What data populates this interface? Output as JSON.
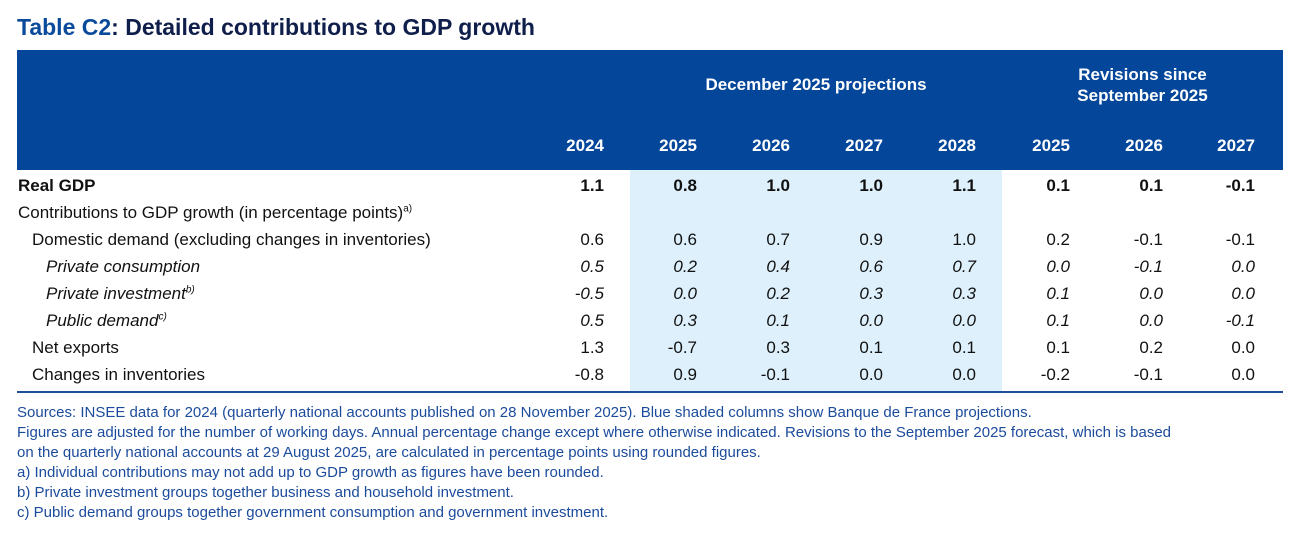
{
  "title": {
    "prefix": "Table C2",
    "rest": ": Detailed contributions to GDP growth"
  },
  "header": {
    "group1": "December 2025 projections",
    "group2_line1": "Revisions since",
    "group2_line2": "September 2025",
    "years": [
      "2024",
      "2025",
      "2026",
      "2027",
      "2028",
      "2025",
      "2026",
      "2027"
    ]
  },
  "colors": {
    "header": "#03469a",
    "shade": "#ddf0fb",
    "notes": "#1b4b9c"
  },
  "rows": [
    {
      "label": "Real GDP",
      "sup": "",
      "style": "b",
      "indent": 0,
      "values": [
        "1.1",
        "0.8",
        "1.0",
        "1.0",
        "1.1",
        "0.1",
        "0.1",
        "-0.1"
      ]
    },
    {
      "label": "Contributions to GDP growth (in percentage points)",
      "sup": "a)",
      "style": "",
      "indent": 0,
      "values": []
    },
    {
      "label": "Domestic demand (excluding changes in inventories)",
      "sup": "",
      "style": "",
      "indent": 1,
      "values": [
        "0.6",
        "0.6",
        "0.7",
        "0.9",
        "1.0",
        "0.2",
        "-0.1",
        "-0.1"
      ]
    },
    {
      "label": "Private consumption",
      "sup": "",
      "style": "i",
      "indent": 2,
      "values": [
        "0.5",
        "0.2",
        "0.4",
        "0.6",
        "0.7",
        "0.0",
        "-0.1",
        "0.0"
      ]
    },
    {
      "label": "Private investment",
      "sup": "b)",
      "style": "i",
      "indent": 2,
      "values": [
        "-0.5",
        "0.0",
        "0.2",
        "0.3",
        "0.3",
        "0.1",
        "0.0",
        "0.0"
      ]
    },
    {
      "label": "Public demand",
      "sup": "c)",
      "style": "i",
      "indent": 2,
      "values": [
        "0.5",
        "0.3",
        "0.1",
        "0.0",
        "0.0",
        "0.1",
        "0.0",
        "-0.1"
      ]
    },
    {
      "label": "Net exports",
      "sup": "",
      "style": "",
      "indent": 1,
      "values": [
        "1.3",
        "-0.7",
        "0.3",
        "0.1",
        "0.1",
        "0.1",
        "0.2",
        "0.0"
      ]
    },
    {
      "label": "Changes in inventories",
      "sup": "",
      "style": "",
      "indent": 1,
      "values": [
        "-0.8",
        "0.9",
        "-0.1",
        "0.0",
        "0.0",
        "-0.2",
        "-0.1",
        "0.0"
      ]
    }
  ],
  "notes": [
    "Sources: INSEE data for 2024 (quarterly national accounts published on 28 November 2025). Blue shaded columns show Banque de France projections.",
    "Figures are adjusted for the number of working days. Annual percentage change except where otherwise indicated. Revisions to the September 2025 forecast, which is based",
    "on the quarterly national accounts at 29 August 2025, are calculated in percentage points using rounded figures.",
    "a)  Individual contributions may not add up to GDP growth as figures have been rounded.",
    "b)  Private investment groups together business and household investment.",
    "c)  Public demand groups together government consumption and government investment."
  ]
}
